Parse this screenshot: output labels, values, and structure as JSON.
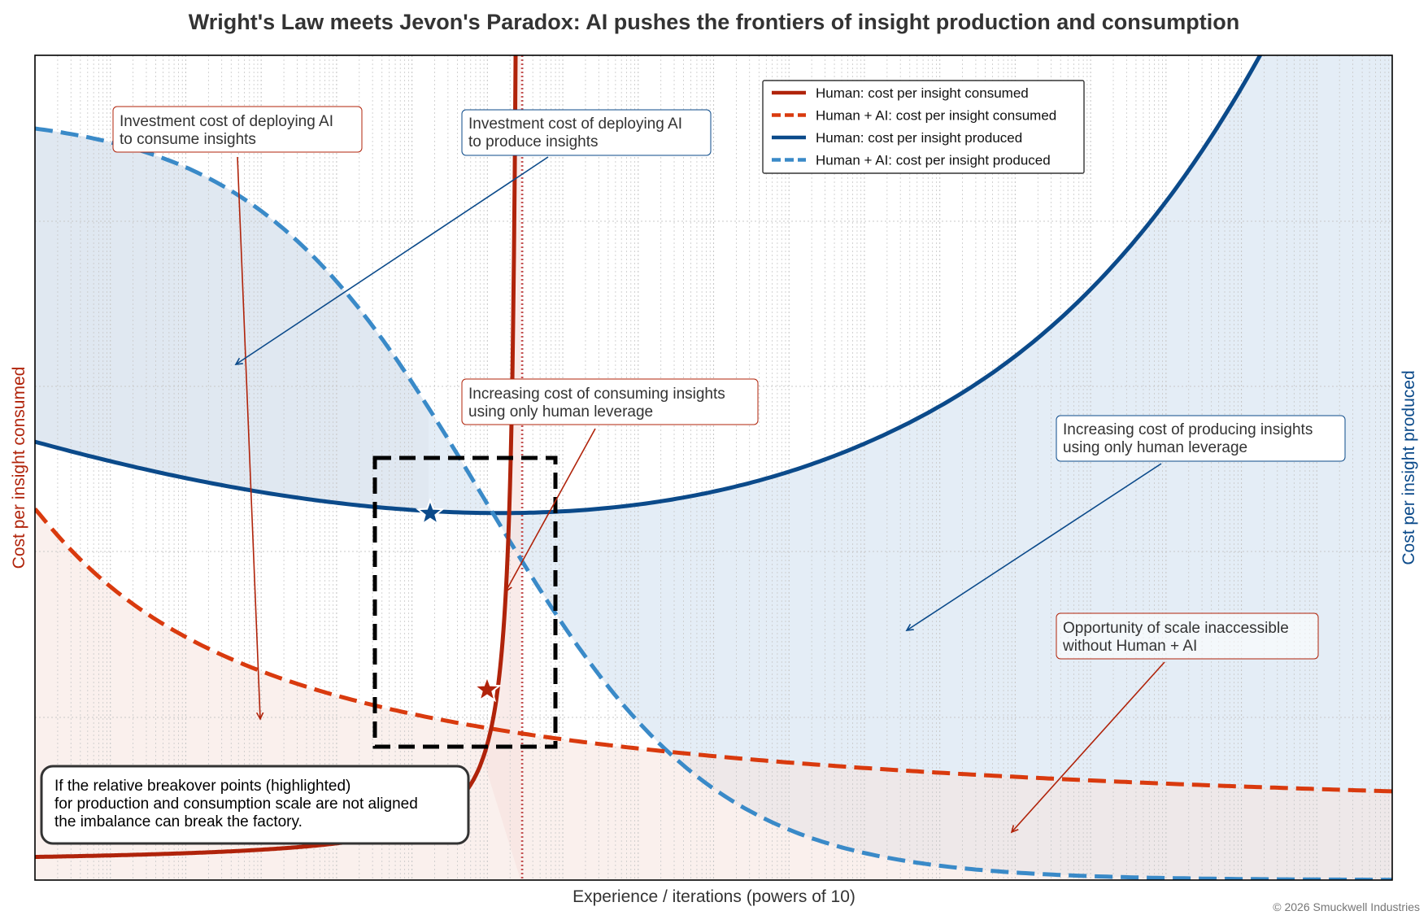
{
  "chart_data": {
    "type": "line",
    "title": "Wright's Law meets Jevon's Paradox: AI pushes the frontiers of insight production and consumption",
    "xlabel": "Experience / iterations (powers of 10)",
    "ylabel_left": "Cost per insight consumed",
    "ylabel_right": "Cost per insight produced",
    "x_scale": "log",
    "x_ticks_shown": false,
    "y_ticks_shown": false,
    "grid": "on",
    "legend_position": "top-right",
    "legend": [
      {
        "label": "Human: cost per insight consumed",
        "color": "#B0230A",
        "style": "solid"
      },
      {
        "label": "Human + AI: cost per insight consumed",
        "color": "#D93A0E",
        "style": "dashed"
      },
      {
        "label": "Human: cost per insight produced",
        "color": "#0B4A8A",
        "style": "solid"
      },
      {
        "label": "Human + AI: cost per insight produced",
        "color": "#3A8AC8",
        "style": "dashed"
      }
    ],
    "annotations": [
      {
        "id": "invest-consume",
        "lines": [
          "Investment cost of deploying AI",
          "to consume insights"
        ],
        "color": "#B0230A"
      },
      {
        "id": "invest-produce",
        "lines": [
          "Investment cost of deploying AI",
          "to produce insights"
        ],
        "color": "#0B4A8A"
      },
      {
        "id": "human-consume",
        "lines": [
          "Increasing cost of consuming insights",
          "using only human leverage"
        ],
        "color": "#B0230A"
      },
      {
        "id": "human-produce",
        "lines": [
          "Increasing cost of producing insights",
          "using only human leverage"
        ],
        "color": "#0B4A8A"
      },
      {
        "id": "scale-opportunity",
        "lines": [
          "Opportunity of scale inaccessible",
          "without Human + AI"
        ],
        "color": "#B0230A"
      }
    ],
    "note": [
      "If the relative breakover points (highlighted)",
      "for production and consumption scale are not aligned",
      "the imbalance can break the factory."
    ],
    "copyright": "© 2026 Smuckwell Industries"
  },
  "colors": {
    "human_consumed": "#B0230A",
    "ai_consumed": "#D93A0E",
    "human_produced": "#0B4A8A",
    "ai_produced": "#3A8AC8",
    "fill_blue": "#E3ECF5",
    "fill_red": "#F6E3DF"
  }
}
